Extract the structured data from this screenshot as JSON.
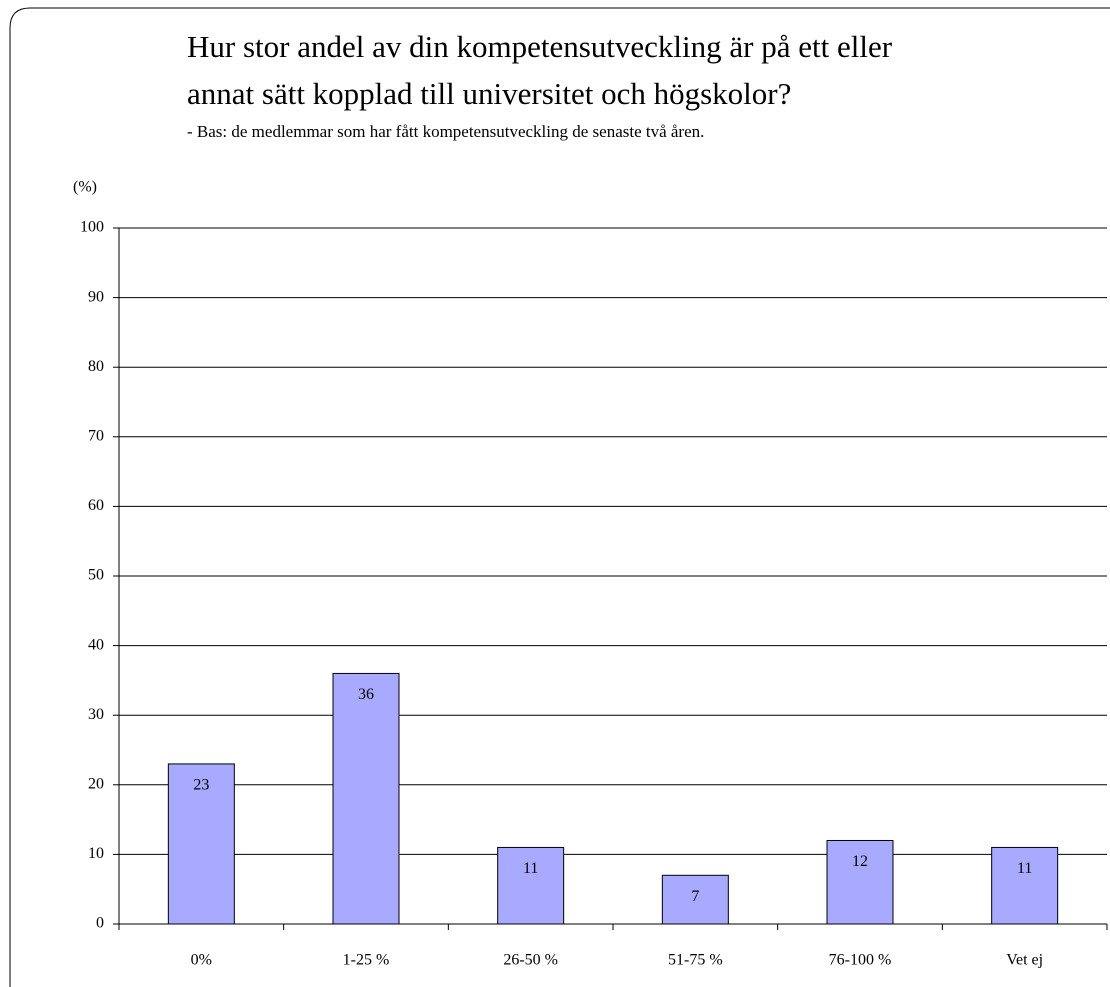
{
  "chart_data": {
    "type": "bar",
    "title": [
      "Hur stor andel av din kompetensutveckling är på ett eller",
      "annat sätt kopplad till universitet och högskolor?"
    ],
    "subtitle": "- Bas: de medlemmar som har fått kompetensutveckling de senaste två åren.",
    "y_label": "(%)",
    "categories": [
      "0%",
      "1-25 %",
      "26-50 %",
      "51-75 %",
      "76-100 %",
      "Vet ej"
    ],
    "values": [
      23,
      36,
      11,
      7,
      12,
      11
    ],
    "color": "#a8aaff",
    "ylim": [
      0,
      100
    ],
    "yticks": [
      0,
      10,
      20,
      30,
      40,
      50,
      60,
      70,
      80,
      90,
      100
    ],
    "grid": true
  }
}
